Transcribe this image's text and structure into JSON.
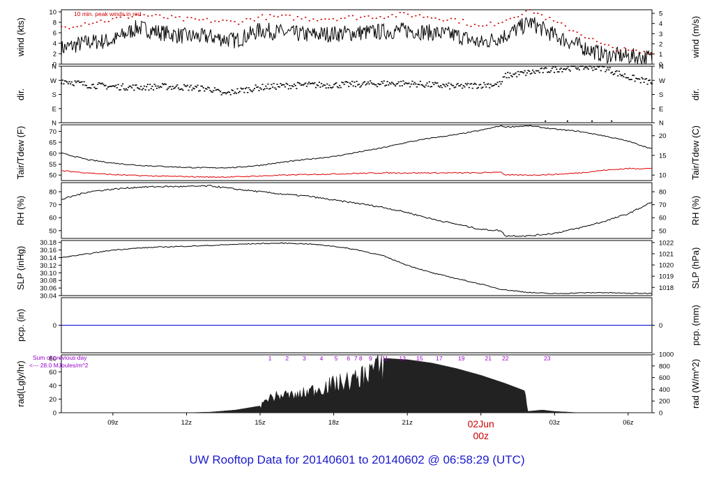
{
  "footer": {
    "title": "UW Rooftop Data for 20140601  to  20140602 @ 06:58:29  (UTC)"
  },
  "chart_data": {
    "type": "line",
    "x_axis": {
      "ticks": [
        "09z",
        "12z",
        "15z",
        "18z",
        "21z",
        "00z",
        "03z",
        "06z"
      ],
      "tick_hours": [
        9,
        12,
        15,
        18,
        21,
        24,
        27,
        30
      ],
      "range_hours": [
        6.9,
        30.97
      ],
      "date_label": "02Jun",
      "date_label_hour": 24,
      "color_date": "#cc0000"
    },
    "panels": [
      {
        "id": "wind",
        "ylabel_left": "wind (kts)",
        "ylabel_right": "wind (m/s)",
        "yticks_left": [
          0,
          2,
          4,
          6,
          8,
          10
        ],
        "yticks_right": [
          0,
          1,
          2,
          3,
          4,
          5
        ],
        "right_scale": 0.5144,
        "ylim": [
          0,
          10.4
        ],
        "annotation": "10 min. peak winds in red",
        "annotation_color": "#cc0000",
        "series": [
          {
            "style": "line",
            "color": "#000000",
            "x": [
              6.9,
              8,
              9,
              10,
              11,
              12,
              13,
              14,
              15,
              16,
              17,
              18,
              19,
              20,
              21,
              22,
              23,
              24,
              25,
              26,
              27,
              28,
              29,
              30,
              30.97
            ],
            "y": [
              3,
              4.2,
              4.5,
              7,
              6,
              5.3,
              5.2,
              4.5,
              6.5,
              6,
              5.6,
              5.8,
              6,
              6.2,
              6.5,
              6,
              5.5,
              4,
              5.5,
              8,
              5.5,
              3.5,
              1.8,
              1.5,
              1.2
            ]
          },
          {
            "style": "dots",
            "color": "#cc0000",
            "x": [
              6.9,
              8,
              9,
              10,
              11,
              12,
              13,
              14,
              15,
              16,
              17,
              18,
              19,
              20,
              21,
              22,
              23,
              24,
              25,
              26,
              27,
              28,
              29,
              30,
              30.97
            ],
            "y": [
              7,
              8,
              8.5,
              9.5,
              9,
              8.5,
              8.3,
              8,
              9,
              9,
              8.7,
              8.8,
              9,
              9.2,
              9.5,
              9,
              8.5,
              7,
              8.5,
              10.5,
              8,
              6,
              3.5,
              2.5,
              2
            ]
          }
        ]
      },
      {
        "id": "dir",
        "ylabel_left": "dir.",
        "ylabel_right": "dir.",
        "yticks_left": [
          "N",
          "E",
          "S",
          "W",
          "N"
        ],
        "yticks_right": [
          "N",
          "E",
          "S",
          "W",
          "N"
        ],
        "ytick_values": [
          0,
          90,
          180,
          270,
          360
        ],
        "ylim": [
          0,
          360
        ],
        "series": [
          {
            "style": "dots",
            "color": "#000000",
            "x": [
              6.9,
              8,
              9,
              10,
              11,
              12,
              13,
              13.5,
              14,
              15,
              16,
              17,
              18,
              19,
              20,
              21,
              22,
              23,
              24,
              24.8,
              25,
              26,
              27,
              28,
              29,
              30,
              30.97
            ],
            "y": [
              270,
              240,
              230,
              225,
              230,
              225,
              215,
              180,
              200,
              225,
              235,
              240,
              240,
              245,
              250,
              250,
              240,
              230,
              240,
              245,
              300,
              320,
              340,
              355,
              350,
              290,
              255
            ]
          },
          {
            "style": "dots",
            "color": "#000000",
            "x": [
              26.6,
              27.5,
              28.5,
              29.3
            ],
            "y": [
              10,
              10,
              10,
              10
            ]
          }
        ]
      },
      {
        "id": "temp",
        "ylabel_left": "Tair/Tdew (F)",
        "ylabel_right": "Tair/Tdew (C)",
        "yticks_left": [
          50,
          55,
          60,
          65,
          70
        ],
        "yticks_right": [
          10,
          15,
          20
        ],
        "right_is_celsius": true,
        "ylim": [
          47.5,
          73
        ],
        "series": [
          {
            "name": "Tair",
            "style": "line",
            "color": "#000000",
            "x": [
              6.9,
              8,
              9,
              10,
              11,
              12,
              13,
              14,
              15,
              16,
              17,
              18,
              19,
              20,
              21,
              22,
              23,
              24,
              24.8,
              25,
              26,
              27,
              28,
              29,
              30,
              30.97
            ],
            "y": [
              60,
              57,
              55.5,
              54.5,
              54,
              53.5,
              53.3,
              53.5,
              54.5,
              56,
              57.3,
              58.5,
              60.5,
              62.5,
              65,
              67,
              68.5,
              70.5,
              72.5,
              72,
              72.5,
              71,
              70,
              68,
              65.5,
              62
            ]
          },
          {
            "name": "Tdew",
            "style": "line",
            "color": "#e00000",
            "x": [
              6.9,
              8,
              9,
              10,
              11,
              12,
              13,
              14,
              15,
              16,
              17,
              18,
              19,
              20,
              21,
              22,
              23,
              24,
              24.8,
              25,
              26,
              27,
              28,
              29,
              30,
              30.97
            ],
            "y": [
              52,
              51,
              50.2,
              49.8,
              49.5,
              49.3,
              49.1,
              49.2,
              49.6,
              50,
              50.3,
              50.5,
              50.8,
              51,
              51,
              51,
              51,
              51,
              51.5,
              50,
              50,
              50.3,
              51,
              52.2,
              53,
              53
            ]
          }
        ]
      },
      {
        "id": "rh",
        "ylabel_left": "RH (%)",
        "ylabel_right": "RH (%)",
        "yticks_left": [
          50,
          60,
          70,
          80
        ],
        "yticks_right": [
          50,
          60,
          70,
          80
        ],
        "ylim": [
          44,
          87
        ],
        "series": [
          {
            "style": "line",
            "color": "#000000",
            "x": [
              6.9,
              8,
              9,
              10,
              11,
              12,
              13,
              14,
              15,
              16,
              17,
              18,
              19,
              20,
              21,
              22,
              23,
              24,
              24.8,
              25,
              26,
              27,
              28,
              29,
              30,
              30.97
            ],
            "y": [
              74,
              80,
              82,
              83.5,
              84,
              84,
              84.5,
              82,
              80,
              78,
              76.5,
              73.5,
              71,
              68,
              64,
              59,
              55,
              51,
              50,
              46,
              46,
              48,
              52,
              57,
              63,
              72
            ]
          }
        ]
      },
      {
        "id": "slp",
        "ylabel_left": "SLP (inHg)",
        "ylabel_right": "SLP (hPa)",
        "yticks_left": [
          "30.04",
          "30.06",
          "30.08",
          "30.10",
          "30.12",
          "30.14",
          "30.16",
          "30.18"
        ],
        "yticks_left_values": [
          30.04,
          30.06,
          30.08,
          30.1,
          30.12,
          30.14,
          30.16,
          30.18
        ],
        "yticks_right": [
          1018,
          1019,
          1020,
          1021,
          1022
        ],
        "right_inhg_per_hpa": 0.02953,
        "ylim": [
          30.04,
          30.185
        ],
        "series": [
          {
            "style": "line",
            "color": "#000000",
            "x": [
              6.9,
              8,
              9,
              10,
              11,
              12,
              13,
              14,
              15,
              16,
              17,
              18,
              19,
              20,
              21,
              22,
              23,
              24,
              24.8,
              25,
              26,
              27,
              28,
              29,
              30,
              30.97
            ],
            "y": [
              30.14,
              30.15,
              30.16,
              30.165,
              30.168,
              30.17,
              30.172,
              30.175,
              30.177,
              30.178,
              30.176,
              30.17,
              30.16,
              30.145,
              30.12,
              30.1,
              30.085,
              30.07,
              30.057,
              30.055,
              30.048,
              30.045,
              30.047,
              30.048,
              30.046,
              30.046
            ]
          }
        ]
      },
      {
        "id": "pcp",
        "ylabel_left": "pcp. (in)",
        "ylabel_right": "pcp. (mm)",
        "yticks_left": [
          0
        ],
        "yticks_right": [
          0
        ],
        "ylim": [
          -1,
          1
        ],
        "series": [
          {
            "style": "line",
            "color": "#0000cc",
            "x": [
              6.9,
              30.97
            ],
            "y": [
              0,
              0
            ]
          }
        ]
      },
      {
        "id": "rad",
        "ylabel_left": "rad(Lgly/hr)",
        "ylabel_right": "rad (W/m^2)",
        "yticks_left": [
          0,
          20,
          40,
          60,
          80
        ],
        "yticks_right": [
          0,
          200,
          400,
          600,
          800,
          1000
        ],
        "right_w_per_lgly": 11.63,
        "ylim": [
          0,
          85
        ],
        "annotation": "Sum of previous day",
        "annotation2": "<--- 28.0  MJoules/m^2",
        "annotation_color": "#9900cc",
        "hour_labels": [
          "1",
          "2",
          "3",
          "4",
          "5",
          "6",
          "7",
          "8",
          "9",
          "11",
          "13",
          "15",
          "17",
          "19",
          "21",
          "22",
          "23"
        ],
        "hour_label_x": [
          15.4,
          16.1,
          16.8,
          17.5,
          18.1,
          18.6,
          18.9,
          19.1,
          19.5,
          20.1,
          20.8,
          21.5,
          22.3,
          23.2,
          24.3,
          25.0,
          26.7
        ],
        "hour_label_color": "#9900cc",
        "series": [
          {
            "style": "area",
            "color": "#222222",
            "x": [
              6.9,
              10,
              12,
              13,
              14,
              15,
              15.3,
              16,
              16.5,
              17,
              17.5,
              18,
              18.5,
              19,
              19.3,
              19.5,
              20,
              21,
              22,
              23,
              24,
              25,
              25.8,
              25.9,
              26.5,
              27,
              28,
              29,
              30,
              30.97
            ],
            "y": [
              0,
              0,
              0,
              1,
              4,
              10,
              26,
              32,
              30,
              38,
              45,
              50,
              55,
              60,
              70,
              78,
              80,
              78,
              73,
              65,
              55,
              43,
              32,
              2,
              4,
              2,
              0,
              0,
              0,
              0
            ]
          }
        ]
      }
    ]
  }
}
